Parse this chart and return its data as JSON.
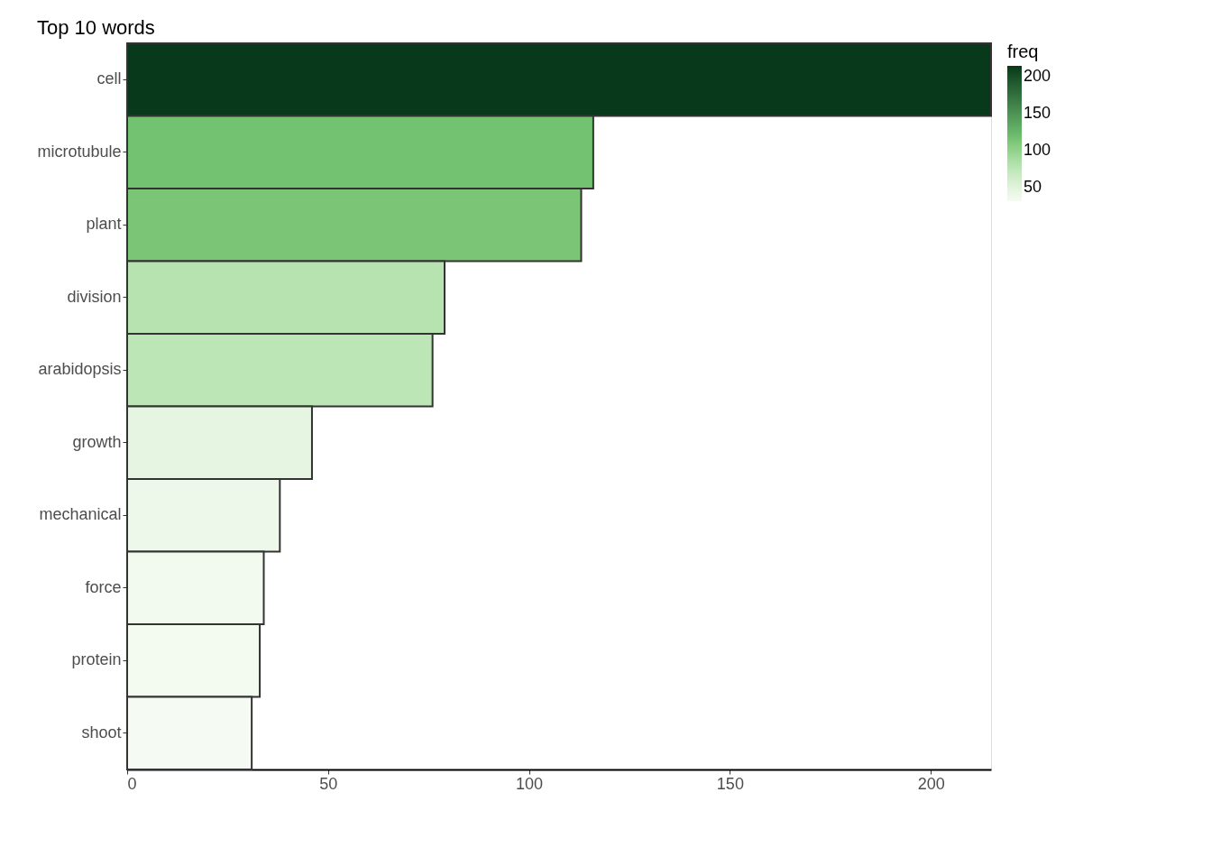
{
  "chart_data": {
    "type": "bar",
    "orientation": "horizontal",
    "title": "Top 10 words",
    "categories": [
      "cell",
      "microtubule",
      "plant",
      "division",
      "arabidopsis",
      "growth",
      "mechanical",
      "force",
      "protein",
      "shoot"
    ],
    "values": [
      215,
      116,
      113,
      79,
      76,
      46,
      38,
      34,
      33,
      31
    ],
    "colors": [
      "#08391a",
      "#72c272",
      "#7bc676",
      "#b6e3b0",
      "#bde6b6",
      "#e6f5e1",
      "#eef8ea",
      "#f2faef",
      "#f3faf0",
      "#f5fbf2"
    ],
    "xlim": [
      0,
      215
    ],
    "xticks": [
      0,
      50,
      100,
      150,
      200
    ],
    "clabel": "freq",
    "cticks": [
      50,
      100,
      150,
      200
    ],
    "grid": false
  }
}
